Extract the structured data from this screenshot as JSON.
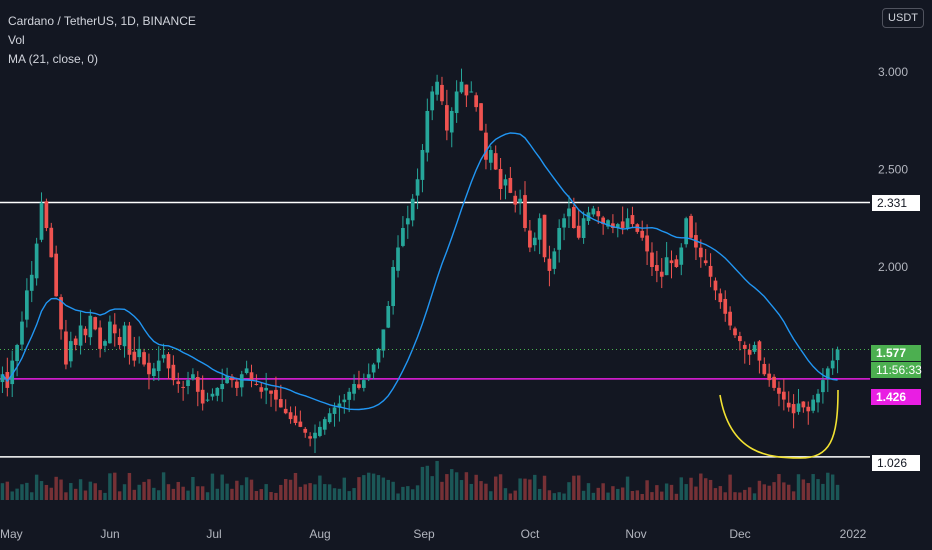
{
  "legend": {
    "symbol": "Cardano / TetherUS, 1D, BINANCE",
    "vol": "Vol",
    "ma": "MA (21, close, 0)"
  },
  "currency_button": "USDT",
  "price_labels": {
    "resistance": "2.331",
    "current": "1.577",
    "countdown": "11:56:33",
    "support_mid": "1.426",
    "support_low": "1.026"
  },
  "colors": {
    "background": "#131722",
    "up": "#26a69a",
    "down": "#ef5350",
    "ma": "#2196f3",
    "magenta": "#e91ee3",
    "white_line": "#ffffff",
    "curve": "#f2e232",
    "current_tag": "#4caf50"
  },
  "chart_data": {
    "type": "candlestick",
    "title": "Cardano / TetherUS, 1D, BINANCE",
    "y_ticks": [
      3.0,
      2.5,
      2.0
    ],
    "x_ticks": [
      "May",
      "Jun",
      "Jul",
      "Aug",
      "Sep",
      "Oct",
      "Nov",
      "Dec",
      "2022"
    ],
    "horizontal_lines": [
      {
        "value": 2.331,
        "color": "#ffffff"
      },
      {
        "value": 1.426,
        "color": "#e91ee3"
      },
      {
        "value": 1.026,
        "color": "#ffffff"
      }
    ],
    "current_price": 1.577,
    "ma_period": 21,
    "close_series": [
      1.45,
      1.38,
      1.52,
      1.6,
      1.72,
      1.88,
      1.96,
      2.12,
      2.33,
      2.2,
      2.05,
      1.85,
      1.68,
      1.5,
      1.62,
      1.6,
      1.7,
      1.65,
      1.75,
      1.68,
      1.58,
      1.62,
      1.72,
      1.66,
      1.6,
      1.7,
      1.55,
      1.52,
      1.58,
      1.5,
      1.45,
      1.48,
      1.52,
      1.55,
      1.48,
      1.42,
      1.4,
      1.38,
      1.42,
      1.45,
      1.36,
      1.3,
      1.32,
      1.35,
      1.38,
      1.4,
      1.44,
      1.42,
      1.38,
      1.45,
      1.48,
      1.42,
      1.4,
      1.36,
      1.38,
      1.35,
      1.32,
      1.28,
      1.25,
      1.22,
      1.2,
      1.18,
      1.15,
      1.12,
      1.15,
      1.18,
      1.22,
      1.25,
      1.28,
      1.3,
      1.32,
      1.36,
      1.4,
      1.38,
      1.42,
      1.45,
      1.5,
      1.58,
      1.68,
      1.8,
      2.0,
      2.1,
      2.2,
      2.25,
      2.35,
      2.45,
      2.6,
      2.8,
      2.9,
      2.95,
      2.85,
      2.7,
      2.8,
      2.9,
      2.95,
      2.88,
      2.9,
      2.82,
      2.7,
      2.55,
      2.6,
      2.5,
      2.4,
      2.45,
      2.38,
      2.32,
      2.35,
      2.2,
      2.1,
      2.15,
      2.25,
      2.05,
      1.98,
      2.08,
      2.2,
      2.25,
      2.3,
      2.2,
      2.15,
      2.25,
      2.28,
      2.3,
      2.26,
      2.22,
      2.24,
      2.2,
      2.22,
      2.2,
      2.25,
      2.22,
      2.18,
      2.15,
      2.08,
      2.0,
      1.98,
      1.95,
      2.05,
      2.02,
      2.0,
      2.1,
      2.25,
      2.15,
      2.1,
      2.05,
      2.02,
      1.95,
      1.88,
      1.82,
      1.76,
      1.7,
      1.65,
      1.62,
      1.58,
      1.55,
      1.6,
      1.52,
      1.45,
      1.42,
      1.38,
      1.35,
      1.32,
      1.28,
      1.25,
      1.3,
      1.28,
      1.26,
      1.32,
      1.35,
      1.42,
      1.48,
      1.52,
      1.577
    ],
    "annotation": {
      "type": "u-curve",
      "color": "#f2e232"
    }
  }
}
